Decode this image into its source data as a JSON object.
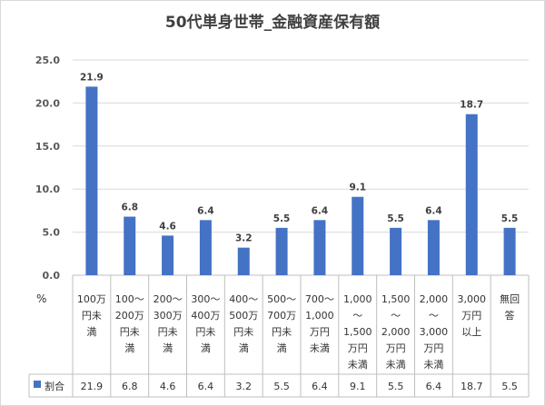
{
  "title": "50代単身世帯_金融資産保有額",
  "colors": {
    "bar": "#4472c4",
    "grid": "#d9d9d9",
    "table_line": "#bfbfbf"
  },
  "chart_data": {
    "type": "bar",
    "title": "50代単身世帯_金融資産保有額",
    "unit_label": "%",
    "categories": [
      [
        "100万",
        "円未",
        "満"
      ],
      [
        "100〜",
        "200万",
        "円未",
        "満"
      ],
      [
        "200〜",
        "300万",
        "円未",
        "満"
      ],
      [
        "300〜",
        "400万",
        "円未",
        "満"
      ],
      [
        "400〜",
        "500万",
        "円未",
        "満"
      ],
      [
        "500〜",
        "700万",
        "円未",
        "満"
      ],
      [
        "700〜",
        "1,000",
        "万円",
        "未満"
      ],
      [
        "1,000",
        "〜",
        "1,500",
        "万円",
        "未満"
      ],
      [
        "1,500",
        "〜",
        "2,000",
        "万円",
        "未満"
      ],
      [
        "2,000",
        "〜",
        "3,000",
        "万円",
        "未満"
      ],
      [
        "3,000",
        "万円",
        "以上"
      ],
      [
        "無回",
        "答"
      ]
    ],
    "series": [
      {
        "name": "割合",
        "values": [
          21.9,
          6.8,
          4.6,
          6.4,
          3.2,
          5.5,
          6.4,
          9.1,
          5.5,
          6.4,
          18.7,
          5.5
        ]
      }
    ],
    "data_labels": [
      "21.9",
      "6.8",
      "4.6",
      "6.4",
      "3.2",
      "5.5",
      "6.4",
      "9.1",
      "5.5",
      "6.4",
      "18.7",
      "5.5"
    ],
    "table_values": [
      "21.9",
      "6.8",
      "4.6",
      "6.4",
      "3.2",
      "5.5",
      "6.4",
      "9.1",
      "5.5",
      "6.4",
      "18.7",
      "5.5"
    ],
    "y_ticks": [
      "0.0",
      "5.0",
      "10.0",
      "15.0",
      "20.0",
      "25.0"
    ],
    "ylim": [
      0,
      25
    ],
    "grid": true,
    "legend": "data-table"
  }
}
